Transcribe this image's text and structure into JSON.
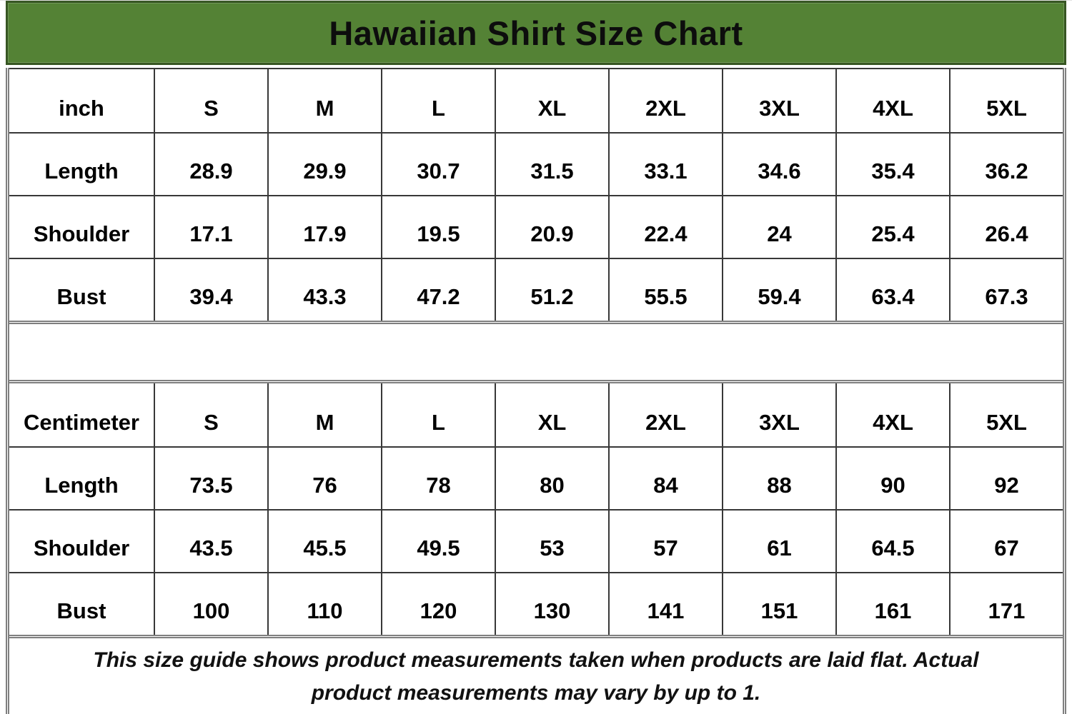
{
  "title": "Hawaiian Shirt Size Chart",
  "colors": {
    "banner_green": "#548235",
    "banner_border": "#375623",
    "grid_gray": "#7f7f7f",
    "cell_border": "#383838"
  },
  "sizes": [
    "S",
    "M",
    "L",
    "XL",
    "2XL",
    "3XL",
    "4XL",
    "5XL"
  ],
  "tables": [
    {
      "unit_label": "inch",
      "rows": [
        {
          "label": "Length",
          "values": [
            "28.9",
            "29.9",
            "30.7",
            "31.5",
            "33.1",
            "34.6",
            "35.4",
            "36.2"
          ]
        },
        {
          "label": "Shoulder",
          "values": [
            "17.1",
            "17.9",
            "19.5",
            "20.9",
            "22.4",
            "24",
            "25.4",
            "26.4"
          ]
        },
        {
          "label": "Bust",
          "values": [
            "39.4",
            "43.3",
            "47.2",
            "51.2",
            "55.5",
            "59.4",
            "63.4",
            "67.3"
          ]
        }
      ]
    },
    {
      "unit_label": "Centimeter",
      "rows": [
        {
          "label": "Length",
          "values": [
            "73.5",
            "76",
            "78",
            "80",
            "84",
            "88",
            "90",
            "92"
          ]
        },
        {
          "label": "Shoulder",
          "values": [
            "43.5",
            "45.5",
            "49.5",
            "53",
            "57",
            "61",
            "64.5",
            "67"
          ]
        },
        {
          "label": "Bust",
          "values": [
            "100",
            "110",
            "120",
            "130",
            "141",
            "151",
            "161",
            "171"
          ]
        }
      ]
    }
  ],
  "footer_note": "This size guide shows product measurements taken when products are laid flat. Actual product measurements may vary by up to 1.",
  "chart_data": {
    "type": "table",
    "title": "Hawaiian Shirt Size Chart",
    "columns": [
      "S",
      "M",
      "L",
      "XL",
      "2XL",
      "3XL",
      "4XL",
      "5XL"
    ],
    "units": [
      {
        "unit": "inch",
        "measurements": {
          "Length": [
            28.9,
            29.9,
            30.7,
            31.5,
            33.1,
            34.6,
            35.4,
            36.2
          ],
          "Shoulder": [
            17.1,
            17.9,
            19.5,
            20.9,
            22.4,
            24,
            25.4,
            26.4
          ],
          "Bust": [
            39.4,
            43.3,
            47.2,
            51.2,
            55.5,
            59.4,
            63.4,
            67.3
          ]
        }
      },
      {
        "unit": "Centimeter",
        "measurements": {
          "Length": [
            73.5,
            76,
            78,
            80,
            84,
            88,
            90,
            92
          ],
          "Shoulder": [
            43.5,
            45.5,
            49.5,
            53,
            57,
            61,
            64.5,
            67
          ],
          "Bust": [
            100,
            110,
            120,
            130,
            141,
            151,
            161,
            171
          ]
        }
      }
    ],
    "note": "This size guide shows product measurements taken when products are laid flat. Actual product measurements may vary by up to 1."
  }
}
